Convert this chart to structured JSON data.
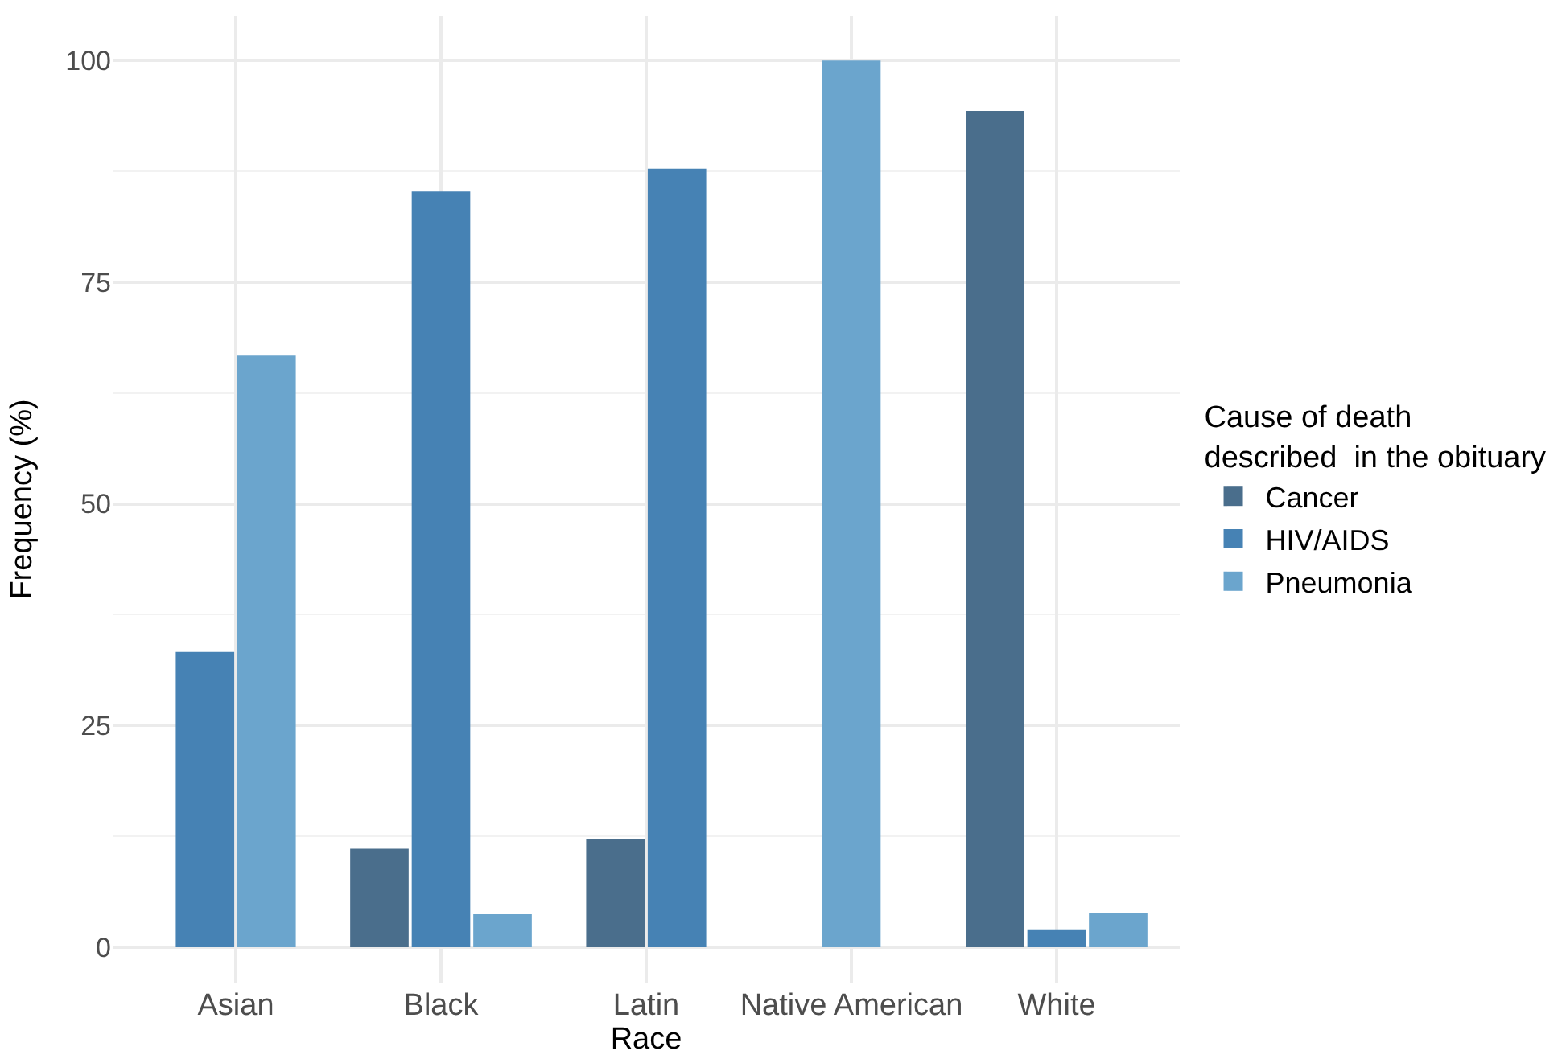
{
  "chart_data": {
    "type": "bar",
    "xlabel": "Race",
    "ylabel": "Frequency (%)",
    "legend_title": "Cause of death\ndescribed  in the obituary",
    "categories": [
      "Asian",
      "Black",
      "Latin",
      "Native American",
      "White"
    ],
    "series": [
      {
        "name": "Cancer",
        "color": "#4a6e8c",
        "values": [
          null,
          11.1,
          12.2,
          null,
          94.3
        ]
      },
      {
        "name": "HIV/AIDS",
        "color": "#4682b4",
        "values": [
          33.3,
          85.2,
          87.8,
          null,
          2.0
        ]
      },
      {
        "name": "Pneumonia",
        "color": "#6ba5cd",
        "values": [
          66.7,
          3.7,
          null,
          100,
          3.9
        ]
      }
    ],
    "ylim": [
      -4,
      105
    ],
    "yticks": [
      0,
      25,
      50,
      75,
      100
    ],
    "grid": true,
    "legend": "right"
  }
}
